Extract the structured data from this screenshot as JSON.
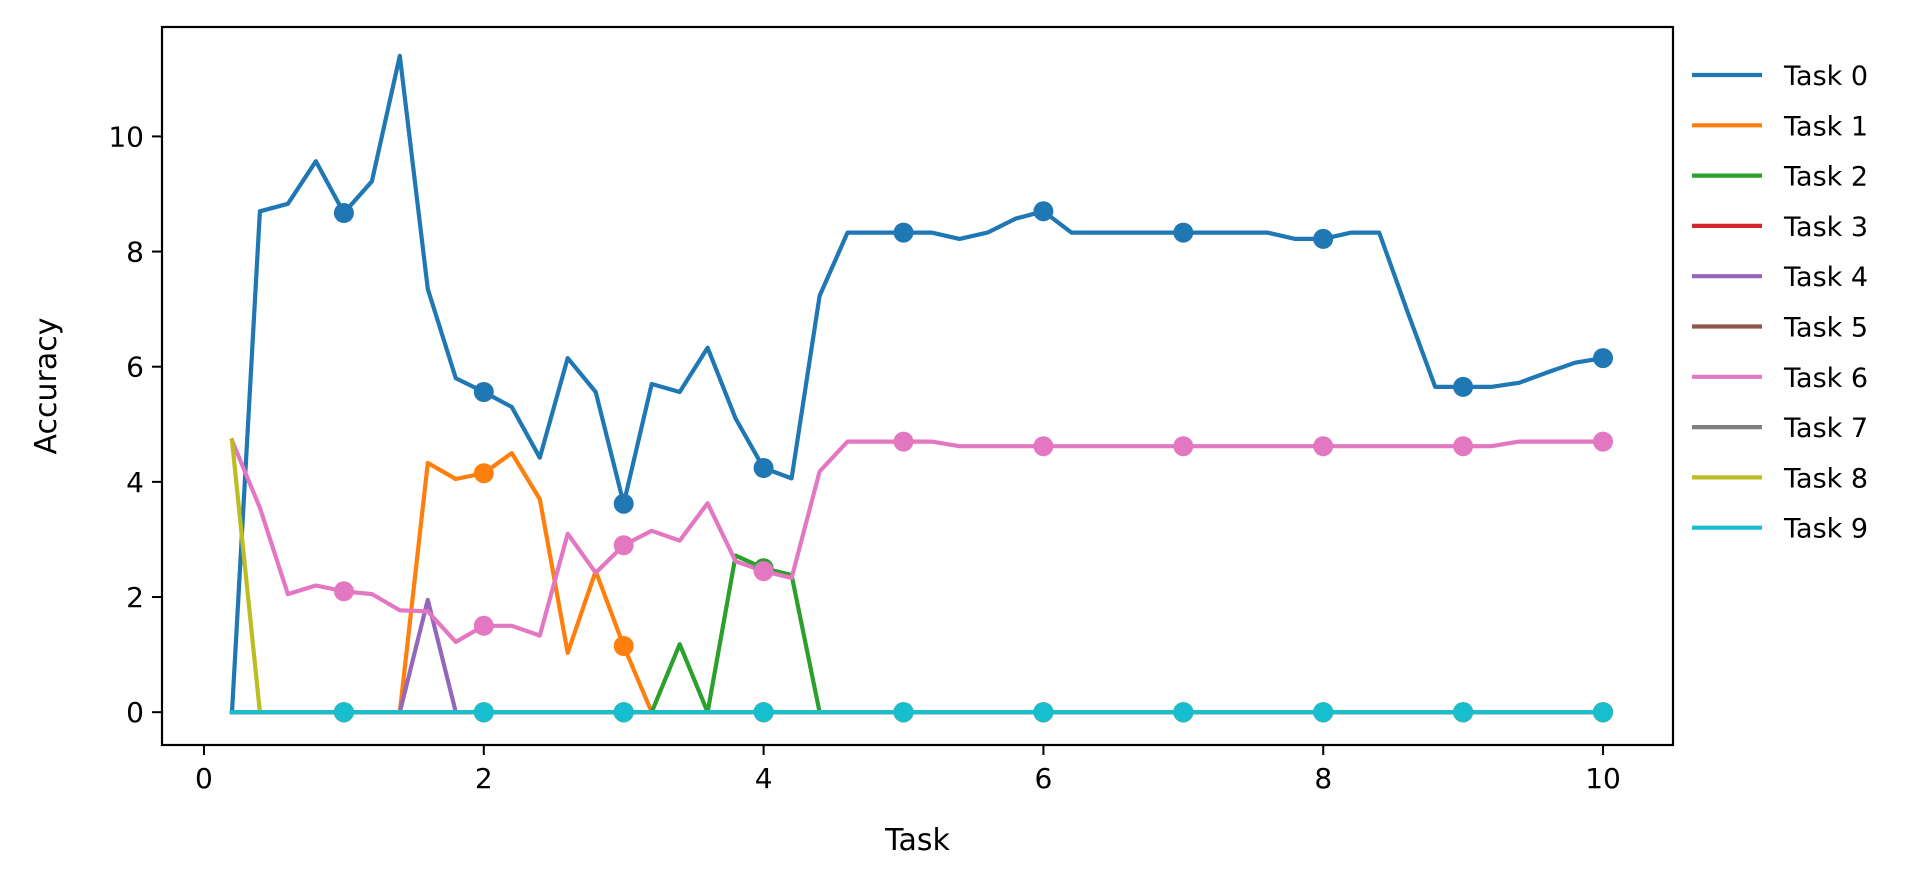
{
  "chart_data": {
    "type": "line",
    "title": "",
    "xlabel": "Task",
    "ylabel": "Accuracy",
    "xlim": [
      -0.3,
      10.5
    ],
    "ylim": [
      -0.57,
      11.9
    ],
    "xticks": [
      0,
      2,
      4,
      6,
      8,
      10
    ],
    "yticks": [
      0,
      2,
      4,
      6,
      8,
      10
    ],
    "grid": false,
    "legend": "outside-right",
    "marker_x": [
      1,
      2,
      3,
      4,
      5,
      6,
      7,
      8,
      9,
      10
    ],
    "series": [
      {
        "name": "Task 0",
        "color": "#1f77b4",
        "x": [
          0.2,
          0.4,
          0.6,
          0.8,
          1.0,
          1.2,
          1.4,
          1.6,
          1.8,
          2.0,
          2.2,
          2.4,
          2.6,
          2.8,
          3.0,
          3.2,
          3.4,
          3.6,
          3.8,
          4.0,
          4.2,
          4.4,
          4.6,
          4.8,
          5.0,
          5.2,
          5.4,
          5.6,
          5.8,
          6.0,
          6.2,
          6.4,
          6.6,
          6.8,
          7.0,
          7.2,
          7.4,
          7.6,
          7.8,
          8.0,
          8.2,
          8.4,
          8.6,
          8.8,
          9.0,
          9.2,
          9.4,
          9.6,
          9.8,
          10.0
        ],
        "y": [
          0,
          8.7,
          8.83,
          9.57,
          8.67,
          9.22,
          11.4,
          7.35,
          5.8,
          5.56,
          5.3,
          4.42,
          6.15,
          5.56,
          3.62,
          5.7,
          5.56,
          6.33,
          5.1,
          4.24,
          4.06,
          7.23,
          8.33,
          8.33,
          8.33,
          8.33,
          8.22,
          8.33,
          8.57,
          8.7,
          8.33,
          8.33,
          8.33,
          8.33,
          8.33,
          8.33,
          8.33,
          8.33,
          8.22,
          8.22,
          8.33,
          8.33,
          6.97,
          5.65,
          5.65,
          5.65,
          5.72,
          5.9,
          6.07,
          6.15
        ]
      },
      {
        "name": "Task 1",
        "color": "#ff7f0e",
        "x": [
          0.2,
          1.2,
          1.4,
          1.6,
          1.8,
          2.0,
          2.2,
          2.4,
          2.6,
          2.8,
          3.0,
          3.2,
          10.0
        ],
        "y": [
          0,
          0,
          0,
          4.33,
          4.05,
          4.15,
          4.5,
          3.7,
          1.03,
          2.45,
          1.15,
          0,
          0
        ]
      },
      {
        "name": "Task 2",
        "color": "#2ca02c",
        "x": [
          0.2,
          3.2,
          3.4,
          3.6,
          3.8,
          4.0,
          4.2,
          4.4,
          10.0
        ],
        "y": [
          0,
          0,
          1.18,
          0,
          2.72,
          2.5,
          2.38,
          0,
          0
        ]
      },
      {
        "name": "Task 3",
        "color": "#d62728",
        "x": [
          0.2,
          10.0
        ],
        "y": [
          0,
          0
        ]
      },
      {
        "name": "Task 4",
        "color": "#9467bd",
        "x": [
          0.2,
          1.4,
          1.6,
          1.8,
          10.0
        ],
        "y": [
          0,
          0,
          1.95,
          0,
          0
        ]
      },
      {
        "name": "Task 5",
        "color": "#8c564b",
        "x": [
          0.2,
          10.0
        ],
        "y": [
          0,
          0
        ]
      },
      {
        "name": "Task 6",
        "color": "#e377c2",
        "x": [
          0.2,
          0.4,
          0.6,
          0.8,
          1.0,
          1.2,
          1.4,
          1.6,
          1.8,
          2.0,
          2.2,
          2.4,
          2.6,
          2.8,
          3.0,
          3.2,
          3.4,
          3.6,
          3.8,
          4.0,
          4.2,
          4.4,
          4.6,
          4.8,
          5.0,
          5.2,
          5.4,
          5.6,
          5.8,
          6.0,
          6.2,
          6.4,
          6.6,
          6.8,
          7.0,
          7.2,
          7.4,
          7.6,
          7.8,
          8.0,
          8.2,
          8.4,
          8.6,
          8.8,
          9.0,
          9.2,
          9.4,
          9.6,
          9.8,
          10.0
        ],
        "y": [
          4.72,
          3.55,
          2.05,
          2.2,
          2.1,
          2.05,
          1.77,
          1.75,
          1.22,
          1.5,
          1.5,
          1.33,
          3.1,
          2.42,
          2.9,
          3.15,
          2.98,
          3.63,
          2.62,
          2.45,
          2.33,
          4.18,
          4.7,
          4.7,
          4.7,
          4.7,
          4.62,
          4.62,
          4.62,
          4.62,
          4.62,
          4.62,
          4.62,
          4.62,
          4.62,
          4.62,
          4.62,
          4.62,
          4.62,
          4.62,
          4.62,
          4.62,
          4.62,
          4.62,
          4.62,
          4.62,
          4.7,
          4.7,
          4.7,
          4.7
        ]
      },
      {
        "name": "Task 7",
        "color": "#7f7f7f",
        "x": [
          0.2,
          10.0
        ],
        "y": [
          0,
          0
        ]
      },
      {
        "name": "Task 8",
        "color": "#bcbd22",
        "x": [
          0.2,
          0.4,
          10.0
        ],
        "y": [
          4.72,
          0,
          0
        ]
      },
      {
        "name": "Task 9",
        "color": "#17becf",
        "x": [
          0.2,
          10.0
        ],
        "y": [
          0,
          0
        ]
      }
    ]
  }
}
